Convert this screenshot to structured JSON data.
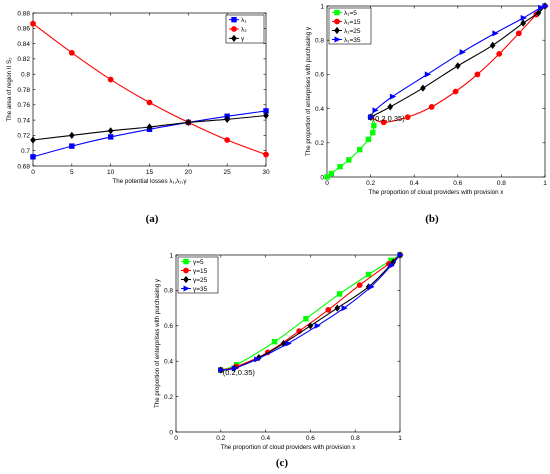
{
  "chart_data": [
    {
      "type": "line",
      "panel_label": "(a)",
      "xlabel": "The potential losses λ₁,λ₂,γ",
      "ylabel": "The area of region II S₂",
      "xlim": [
        0,
        30
      ],
      "ylim": [
        0.68,
        0.88
      ],
      "xticks": [
        0,
        5,
        10,
        15,
        20,
        25,
        30
      ],
      "xtick_labels": [
        "0",
        "5",
        "10",
        "15",
        "20",
        "25",
        "30"
      ],
      "yticks": [
        0.68,
        0.7,
        0.72,
        0.74,
        0.76,
        0.78,
        0.8,
        0.82,
        0.84,
        0.86,
        0.88
      ],
      "ytick_labels": [
        "0.68",
        "0.7",
        "0.72",
        "0.74",
        "0.76",
        "0.78",
        "0.8",
        "0.82",
        "0.84",
        "0.86",
        "0.88"
      ],
      "legend_position": "top-right",
      "x": [
        0,
        5,
        10,
        15,
        20,
        25,
        30
      ],
      "series": [
        {
          "name": "λ₁",
          "color": "#0000ff",
          "marker": "square",
          "values": [
            0.692,
            0.706,
            0.718,
            0.728,
            0.737,
            0.745,
            0.752
          ]
        },
        {
          "name": "λ₂",
          "color": "#ff0000",
          "marker": "circle",
          "values": [
            0.866,
            0.828,
            0.793,
            0.763,
            0.737,
            0.714,
            0.695
          ]
        },
        {
          "name": "γ",
          "color": "#000000",
          "marker": "diamond",
          "values": [
            0.714,
            0.72,
            0.726,
            0.731,
            0.737,
            0.741,
            0.746
          ]
        }
      ]
    },
    {
      "type": "line",
      "panel_label": "(b)",
      "xlabel": "The proportion of cloud providers with provision x",
      "ylabel": "The proportion of enterprises with purchasing y",
      "xlim": [
        0,
        1
      ],
      "ylim": [
        0,
        1
      ],
      "xticks": [
        0,
        0.2,
        0.4,
        0.6,
        0.8,
        1
      ],
      "xtick_labels": [
        "0",
        "0.2",
        "0.4",
        "0.6",
        "0.8",
        "1"
      ],
      "yticks": [
        0,
        0.2,
        0.4,
        0.6,
        0.8,
        1
      ],
      "ytick_labels": [
        "0",
        "0.2",
        "0.4",
        "0.6",
        "0.8",
        "1"
      ],
      "legend_position": "top-left",
      "annotation": {
        "text": "(0.2,0.35)",
        "x": 0.2,
        "y": 0.35
      },
      "series": [
        {
          "name": "λ₁=5",
          "color": "#00ff00",
          "marker": "square",
          "points": [
            [
              0.0,
              0.0
            ],
            [
              0.02,
              0.02
            ],
            [
              0.06,
              0.06
            ],
            [
              0.1,
              0.1
            ],
            [
              0.15,
              0.16
            ],
            [
              0.19,
              0.22
            ],
            [
              0.21,
              0.26
            ],
            [
              0.215,
              0.3
            ],
            [
              0.2,
              0.35
            ]
          ]
        },
        {
          "name": "λ₁=15",
          "color": "#ff0000",
          "marker": "circle",
          "points": [
            [
              0.2,
              0.35
            ],
            [
              0.26,
              0.32
            ],
            [
              0.37,
              0.35
            ],
            [
              0.48,
              0.41
            ],
            [
              0.59,
              0.5
            ],
            [
              0.69,
              0.6
            ],
            [
              0.79,
              0.72
            ],
            [
              0.88,
              0.84
            ],
            [
              0.96,
              0.95
            ],
            [
              1.0,
              1.0
            ]
          ]
        },
        {
          "name": "λ₁=25",
          "color": "#000000",
          "marker": "diamond",
          "points": [
            [
              0.2,
              0.35
            ],
            [
              0.29,
              0.41
            ],
            [
              0.44,
              0.52
            ],
            [
              0.6,
              0.65
            ],
            [
              0.76,
              0.77
            ],
            [
              0.9,
              0.9
            ],
            [
              0.97,
              0.96
            ],
            [
              1.0,
              1.0
            ]
          ]
        },
        {
          "name": "λ₁=35",
          "color": "#0000ff",
          "marker": "triangle",
          "points": [
            [
              0.2,
              0.35
            ],
            [
              0.22,
              0.39
            ],
            [
              0.3,
              0.47
            ],
            [
              0.46,
              0.6
            ],
            [
              0.62,
              0.73
            ],
            [
              0.77,
              0.84
            ],
            [
              0.9,
              0.93
            ],
            [
              0.98,
              0.99
            ],
            [
              1.0,
              1.0
            ]
          ]
        }
      ]
    },
    {
      "type": "line",
      "panel_label": "(c)",
      "xlabel": "The proportion of cloud providers with provision x",
      "ylabel": "The proportion of enterprises with purchasing y",
      "xlim": [
        0,
        1
      ],
      "ylim": [
        0,
        1
      ],
      "xticks": [
        0,
        0.2,
        0.4,
        0.6,
        0.8,
        1
      ],
      "xtick_labels": [
        "0",
        "0.2",
        "0.4",
        "0.6",
        "0.8",
        "1"
      ],
      "yticks": [
        0,
        0.2,
        0.4,
        0.6,
        0.8,
        1
      ],
      "ytick_labels": [
        "0",
        "0.2",
        "0.4",
        "0.6",
        "0.8",
        "1"
      ],
      "legend_position": "top-left",
      "annotation": {
        "text": "(0.2,0.35)",
        "x": 0.2,
        "y": 0.35
      },
      "series": [
        {
          "name": "γ=5",
          "color": "#00ff00",
          "marker": "square",
          "points": [
            [
              0.2,
              0.35
            ],
            [
              0.27,
              0.38
            ],
            [
              0.44,
              0.51
            ],
            [
              0.58,
              0.64
            ],
            [
              0.73,
              0.78
            ],
            [
              0.86,
              0.89
            ],
            [
              0.96,
              0.97
            ],
            [
              1.0,
              1.0
            ]
          ]
        },
        {
          "name": "γ=15",
          "color": "#ff0000",
          "marker": "circle",
          "points": [
            [
              0.2,
              0.35
            ],
            [
              0.27,
              0.37
            ],
            [
              0.41,
              0.45
            ],
            [
              0.55,
              0.57
            ],
            [
              0.68,
              0.69
            ],
            [
              0.82,
              0.83
            ],
            [
              0.95,
              0.95
            ],
            [
              1.0,
              1.0
            ]
          ]
        },
        {
          "name": "γ=25",
          "color": "#000000",
          "marker": "diamond",
          "points": [
            [
              0.2,
              0.35
            ],
            [
              0.26,
              0.36
            ],
            [
              0.37,
              0.42
            ],
            [
              0.48,
              0.5
            ],
            [
              0.6,
              0.6
            ],
            [
              0.72,
              0.7
            ],
            [
              0.86,
              0.82
            ],
            [
              0.97,
              0.96
            ],
            [
              1.0,
              1.0
            ]
          ]
        },
        {
          "name": "γ=35",
          "color": "#0000ff",
          "marker": "triangle",
          "points": [
            [
              0.2,
              0.35
            ],
            [
              0.26,
              0.36
            ],
            [
              0.36,
              0.41
            ],
            [
              0.5,
              0.5
            ],
            [
              0.63,
              0.6
            ],
            [
              0.75,
              0.7
            ],
            [
              0.87,
              0.82
            ],
            [
              0.96,
              0.94
            ],
            [
              1.0,
              1.0
            ]
          ]
        }
      ]
    }
  ]
}
